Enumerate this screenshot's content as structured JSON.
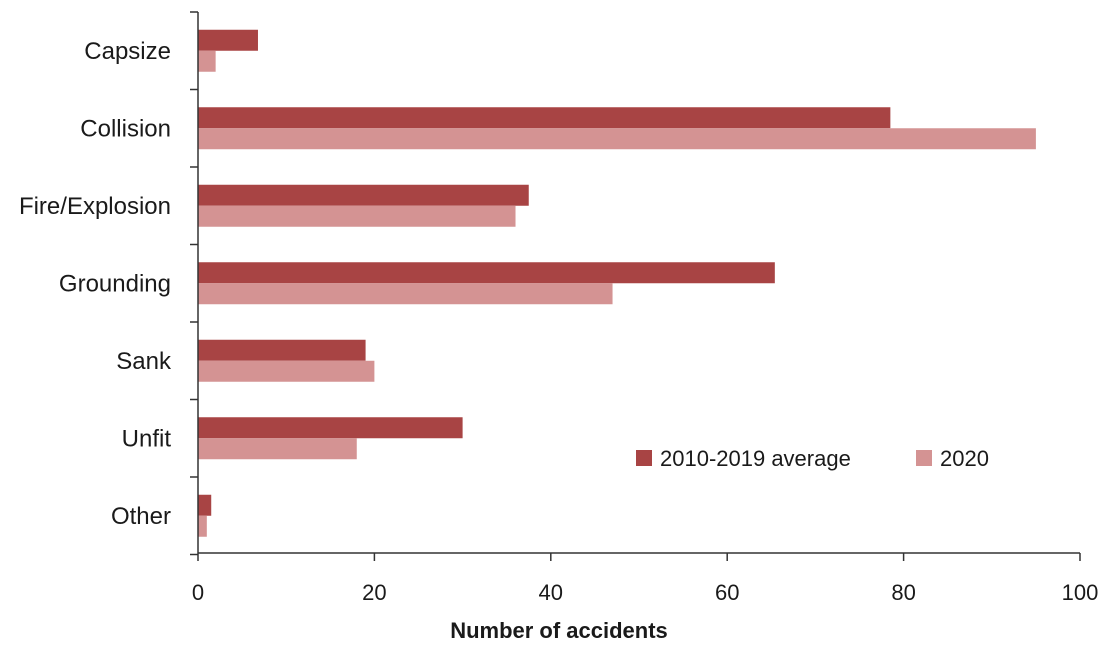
{
  "chart_data": {
    "type": "bar",
    "orientation": "horizontal",
    "categories": [
      "Capsize",
      "Collision",
      "Fire/Explosion",
      "Grounding",
      "Sank",
      "Unfit",
      "Other"
    ],
    "series": [
      {
        "name": "2010-2019 average",
        "color": "#a84444",
        "values": [
          6.8,
          78.5,
          37.5,
          65.4,
          19.0,
          30.0,
          1.5
        ]
      },
      {
        "name": "2020",
        "color": "#d49393",
        "values": [
          2,
          95,
          36,
          47,
          20,
          18,
          1
        ]
      }
    ],
    "xlabel": "Number of accidents",
    "ylabel": "",
    "xlim": [
      0,
      100
    ],
    "x_ticks": [
      "0",
      "20",
      "40",
      "60",
      "80",
      "100"
    ],
    "grid": false,
    "legend_position": "lower-right"
  }
}
